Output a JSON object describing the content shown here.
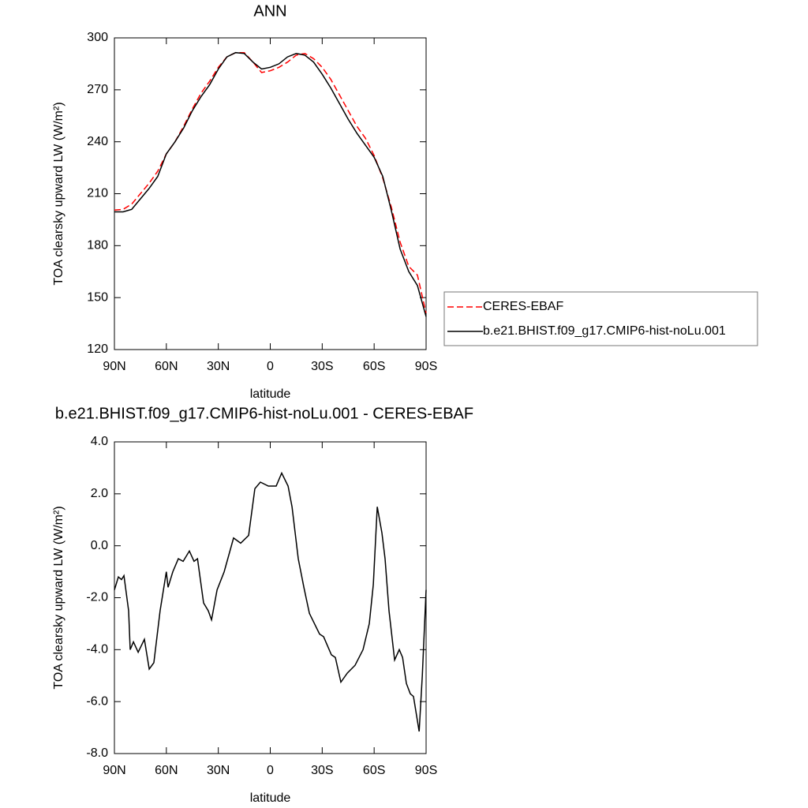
{
  "chart_data": [
    {
      "type": "line",
      "title": "ANN",
      "xlabel": "latitude",
      "ylabel": "TOA clearsky upward LW (W/m²)",
      "xlim": [
        90,
        -90
      ],
      "ylim": [
        120,
        300
      ],
      "xticks": [
        {
          "value": 90,
          "label": "90N"
        },
        {
          "value": 60,
          "label": "60N"
        },
        {
          "value": 30,
          "label": "30N"
        },
        0,
        {
          "value": -30,
          "label": "30S"
        },
        {
          "value": -60,
          "label": "60S"
        },
        {
          "value": -90,
          "label": "90S"
        }
      ],
      "yticks": [
        120,
        150,
        180,
        210,
        240,
        270,
        300
      ],
      "legend": "right",
      "x": [
        90,
        85,
        80,
        75,
        70,
        65,
        60,
        55,
        50,
        45,
        40,
        35,
        30,
        25,
        20,
        15,
        10,
        5,
        0,
        -5,
        -10,
        -15,
        -20,
        -25,
        -30,
        -35,
        -40,
        -45,
        -50,
        -55,
        -60,
        -65,
        -70,
        -75,
        -80,
        -85,
        -90
      ],
      "series": [
        {
          "name": "CERES-EBAF",
          "color": "#ff0000",
          "linestyle": "dashed",
          "values": [
            200.5,
            201,
            204,
            210,
            216,
            223,
            233,
            240,
            249,
            259,
            268,
            275,
            283,
            289,
            291.5,
            291.5,
            286,
            280,
            281,
            283,
            286,
            290,
            291,
            288,
            283,
            276,
            267,
            258,
            249,
            242,
            232,
            219,
            202,
            182,
            168,
            163,
            141
          ]
        },
        {
          "name": "b.e21.BHIST.f09_g17.CMIP6-hist-noLu.001",
          "color": "#000000",
          "linestyle": "solid",
          "values": [
            199.5,
            199.5,
            201,
            207,
            213,
            220,
            233,
            240,
            248,
            258,
            266,
            273,
            282,
            289,
            291.5,
            291,
            286,
            282,
            283,
            285,
            289,
            291,
            290,
            286,
            279,
            271,
            262,
            253,
            245,
            238,
            231,
            220,
            200,
            178,
            165,
            157,
            139
          ]
        }
      ]
    },
    {
      "type": "line",
      "title": "b.e21.BHIST.f09_g17.CMIP6-hist-noLu.001 - CERES-EBAF",
      "xlabel": "latitude",
      "ylabel": "TOA clearsky upward LW (W/m²)",
      "xlim": [
        90,
        -90
      ],
      "ylim": [
        -8,
        4
      ],
      "xticks": [
        {
          "value": 90,
          "label": "90N"
        },
        {
          "value": 60,
          "label": "60N"
        },
        {
          "value": 30,
          "label": "30N"
        },
        0,
        {
          "value": -30,
          "label": "30S"
        },
        {
          "value": -60,
          "label": "60S"
        },
        {
          "value": -90,
          "label": "90S"
        }
      ],
      "yticks": [
        {
          "value": -8,
          "label": "-8.0"
        },
        {
          "value": -6,
          "label": "-6.0"
        },
        {
          "value": -4,
          "label": "-4.0"
        },
        {
          "value": -2,
          "label": "-2.0"
        },
        {
          "value": 0,
          "label": "0.0"
        },
        {
          "value": 2,
          "label": "2.0"
        },
        {
          "value": 4,
          "label": "4.0"
        }
      ],
      "x": [
        90,
        87.7,
        85.9,
        84.5,
        81.8,
        80.9,
        79,
        76.3,
        72.7,
        69.9,
        67.2,
        63.6,
        60,
        59,
        56.3,
        53.1,
        50.3,
        46.7,
        44,
        42,
        38.5,
        35.8,
        33.9,
        30.7,
        26.6,
        21.2,
        17.1,
        12.5,
        8.9,
        5.7,
        1.1,
        -3.4,
        -6.6,
        -10.3,
        -12.6,
        -16.2,
        -19.4,
        -22.6,
        -28.5,
        -30.8,
        -35.3,
        -37.6,
        -40.8,
        -44.5,
        -49,
        -53.6,
        -57.2,
        -59.5,
        -61.8,
        -64.5,
        -66.3,
        -68.6,
        -71.8,
        -74.5,
        -76.4,
        -78.6,
        -80.9,
        -82.7,
        -86,
        -87.8,
        -90
      ],
      "series": [
        {
          "color": "#000000",
          "linestyle": "solid",
          "values": [
            -1.7,
            -1.2,
            -1.3,
            -1.15,
            -2.5,
            -4.0,
            -3.7,
            -4.1,
            -3.6,
            -4.75,
            -4.5,
            -2.5,
            -1.0,
            -1.6,
            -1.0,
            -0.5,
            -0.6,
            -0.2,
            -0.6,
            -0.5,
            -2.2,
            -2.5,
            -2.85,
            -1.7,
            -1.0,
            0.3,
            0.1,
            0.4,
            2.2,
            2.45,
            2.3,
            2.3,
            2.8,
            2.3,
            1.5,
            -0.5,
            -1.6,
            -2.6,
            -3.4,
            -3.5,
            -4.2,
            -4.3,
            -5.25,
            -4.9,
            -4.6,
            -4.0,
            -3.0,
            -1.5,
            1.5,
            0.5,
            -0.5,
            -2.5,
            -4.4,
            -4.0,
            -4.3,
            -5.3,
            -5.7,
            -5.8,
            -7.15,
            -5.0,
            -1.7
          ]
        }
      ]
    }
  ]
}
